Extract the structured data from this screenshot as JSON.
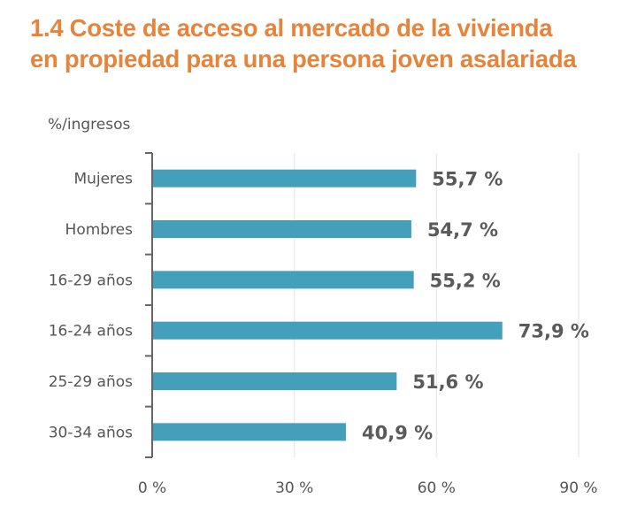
{
  "title_lines": [
    "1.4 Coste de acceso al mercado de la vivienda",
    "en propiedad para una persona joven asalariada"
  ],
  "colors": {
    "title": "#e5843a",
    "bar": "#449fba",
    "text": "#555555",
    "axis": "#666666",
    "grid": "#ececec"
  },
  "chart_data": {
    "type": "bar",
    "orientation": "horizontal",
    "title": "1.4 Coste de acceso al mercado de la vivienda en propiedad para una persona joven asalariada",
    "ylabel": "%/ingresos",
    "xlabel": "",
    "categories": [
      "Mujeres",
      "Hombres",
      "16-29 años",
      "16-24 años",
      "25-29 años",
      "30-34 años"
    ],
    "values": [
      55.7,
      54.7,
      55.2,
      73.9,
      51.6,
      40.9
    ],
    "data_labels": [
      "55,7 %",
      "54,7 %",
      "55,2 %",
      "73,9 %",
      "51,6 %",
      "40,9 %"
    ],
    "xlim": [
      0,
      90
    ],
    "xticks": [
      0,
      30,
      60,
      90
    ],
    "xtick_labels": [
      "0 %",
      "30 %",
      "60 %",
      "90 %"
    ],
    "grid": true,
    "legend": "none"
  }
}
